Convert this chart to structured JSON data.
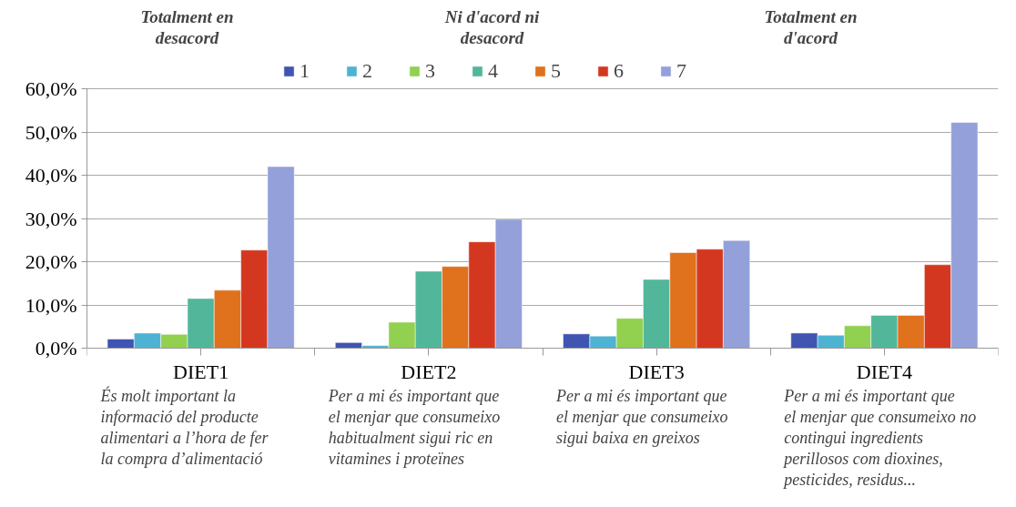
{
  "chart_data": {
    "type": "bar",
    "categories": [
      "DIET1",
      "DIET2",
      "DIET3",
      "DIET4"
    ],
    "series": [
      {
        "name": "1",
        "color": "#4054b2",
        "values": [
          2.1,
          1.3,
          3.3,
          3.5
        ]
      },
      {
        "name": "2",
        "color": "#4eb3d3",
        "values": [
          3.5,
          0.6,
          2.8,
          3.0
        ]
      },
      {
        "name": "3",
        "color": "#92d050",
        "values": [
          3.2,
          6.0,
          6.9,
          5.2
        ]
      },
      {
        "name": "4",
        "color": "#52b69a",
        "values": [
          11.5,
          17.8,
          15.9,
          7.6
        ]
      },
      {
        "name": "5",
        "color": "#e0711d",
        "values": [
          13.4,
          18.9,
          22.1,
          7.6
        ]
      },
      {
        "name": "6",
        "color": "#d4371f",
        "values": [
          22.7,
          24.6,
          22.9,
          19.3
        ]
      },
      {
        "name": "7",
        "color": "#93a0d9",
        "values": [
          42.0,
          29.8,
          24.9,
          52.2
        ]
      }
    ],
    "ylim": [
      0,
      60
    ],
    "yticks": [
      {
        "value": 0,
        "label": "0,0%"
      },
      {
        "value": 10,
        "label": "10,0%"
      },
      {
        "value": 20,
        "label": "20,0%"
      },
      {
        "value": 30,
        "label": "30,0%"
      },
      {
        "value": 40,
        "label": "40,0%"
      },
      {
        "value": 50,
        "label": "50,0%"
      },
      {
        "value": 60,
        "label": "60,0%"
      }
    ],
    "grid": "y",
    "legend": "top",
    "annotations": [
      "Totalment en desacord",
      "Ni d'acord ni desacord",
      "Totalment en d'acord",
      "És molt important la informació del producte alimentari a l’hora de fer la compra d’alimentació",
      "Per a mi és important que el menjar que consumeixo habitualment sigui ric en vitamines i proteïnes",
      "Per a mi és important que el menjar que consumeixo sigui baixa en greixos",
      "Per a mi és important que el menjar que consumeixo no contingui ingredients perillosos com dioxines, pesticides, residus..."
    ]
  }
}
